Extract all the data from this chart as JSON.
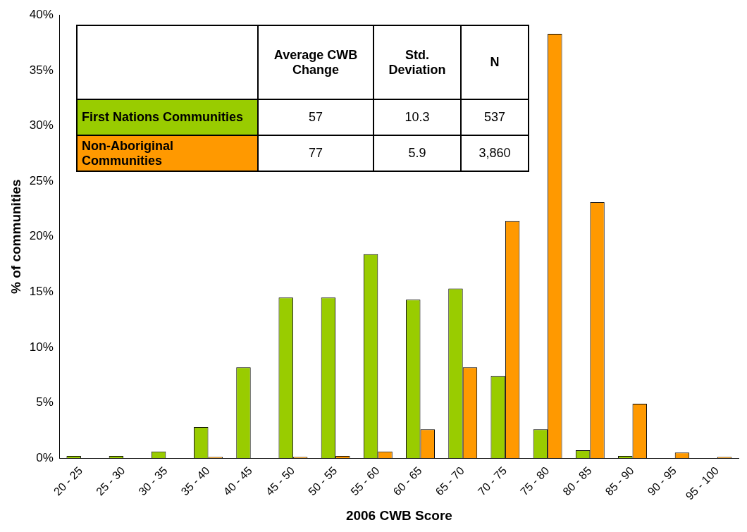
{
  "chart_data": {
    "type": "bar",
    "xlabel": "2006 CWB Score",
    "ylabel": "% of communities",
    "categories": [
      "20 - 25",
      "25 - 30",
      "30 - 35",
      "35 - 40",
      "40 - 45",
      "45 - 50",
      "50 - 55",
      "55 - 60",
      "60 - 65",
      "65 - 70",
      "70 - 75",
      "75 - 80",
      "80 - 85",
      "85 - 90",
      "90 - 95",
      "95 - 100"
    ],
    "series": [
      {
        "name": "First Nations Communities",
        "color": "#99cc00",
        "values": [
          0.2,
          0.2,
          0.6,
          2.8,
          8.2,
          14.5,
          14.5,
          18.4,
          14.3,
          15.3,
          7.4,
          2.6,
          0.7,
          0.2,
          0,
          0
        ]
      },
      {
        "name": "Non-Aboriginal Communities",
        "color": "#ff9900",
        "values": [
          0,
          0,
          0,
          0.1,
          0,
          0.1,
          0.2,
          0.6,
          2.6,
          8.2,
          21.4,
          38.3,
          23.1,
          4.9,
          0.5,
          0.1
        ]
      }
    ],
    "ylim": [
      0,
      40
    ],
    "yticks": [
      {
        "value": 0,
        "label": "0%"
      },
      {
        "value": 5,
        "label": "5%"
      },
      {
        "value": 10,
        "label": "10%"
      },
      {
        "value": 15,
        "label": "15%"
      },
      {
        "value": 20,
        "label": "20%"
      },
      {
        "value": 25,
        "label": "25%"
      },
      {
        "value": 30,
        "label": "30%"
      },
      {
        "value": 35,
        "label": "35%"
      },
      {
        "value": 40,
        "label": "40%"
      }
    ],
    "grid": false,
    "legend": "top left",
    "annotations": [
      "Average CWB Change",
      "Std. Deviation",
      "N",
      "57",
      "10.3",
      "537",
      "77",
      "5.9",
      "3,860"
    ]
  }
}
